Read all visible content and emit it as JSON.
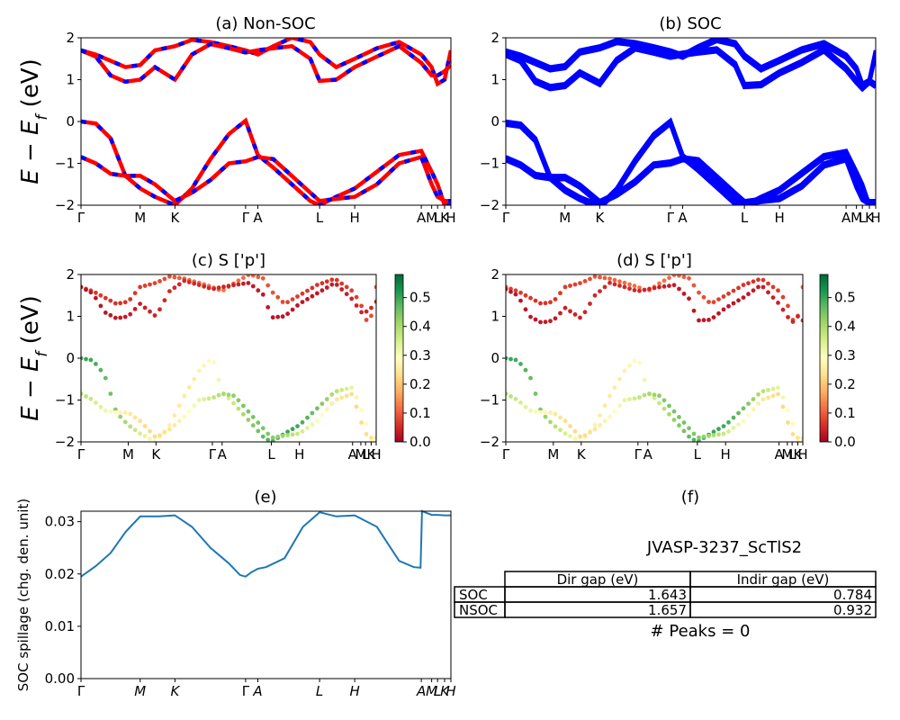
{
  "kpath": [
    "Γ",
    "M",
    "K",
    "Γ",
    "A",
    "L",
    "H",
    "A",
    "M",
    "L",
    "K",
    "H"
  ],
  "kpath_pos": [
    0,
    0.16,
    0.254,
    0.445,
    0.478,
    0.645,
    0.74,
    0.92,
    0.948,
    0.964,
    0.983,
    1.0
  ],
  "ylabel_band": "E − E",
  "ylabel_band_sub": "f",
  "ylabel_band_unit": " (eV)",
  "colors": {
    "red": "#ff0000",
    "blue": "#0000ff",
    "spill": "#1f77b4"
  },
  "chart_data": [
    {
      "type": "line",
      "id": "a",
      "title": "(a) Non-SOC",
      "ylim": [
        -2,
        2
      ],
      "yticks": [
        -2,
        -1,
        0,
        1,
        2
      ],
      "x": [
        0,
        0.04,
        0.08,
        0.12,
        0.16,
        0.2,
        0.254,
        0.3,
        0.35,
        0.4,
        0.445,
        0.478,
        0.52,
        0.57,
        0.62,
        0.645,
        0.69,
        0.74,
        0.8,
        0.86,
        0.92,
        0.948,
        0.964,
        0.983,
        1.0
      ],
      "series": [
        {
          "name": "",
          "values": [
            0.0,
            -0.05,
            -0.4,
            -1.3,
            -1.6,
            -1.8,
            -2.0,
            -1.6,
            -0.9,
            -0.3,
            0.02,
            -0.8,
            -1.1,
            -1.5,
            -1.9,
            -2.0,
            -1.8,
            -1.6,
            -1.2,
            -0.8,
            -0.7,
            -1.2,
            -1.5,
            -2.0,
            -2.0
          ]
        },
        {
          "name": "",
          "values": [
            -0.85,
            -1.0,
            -1.25,
            -1.3,
            -1.3,
            -1.5,
            -1.9,
            -1.7,
            -1.4,
            -1.0,
            -0.95,
            -0.85,
            -0.9,
            -1.3,
            -1.7,
            -1.9,
            -1.85,
            -1.8,
            -1.5,
            -1.0,
            -0.85,
            -1.5,
            -1.8,
            -1.9,
            -1.9
          ]
        },
        {
          "name": "",
          "values": [
            1.7,
            1.6,
            1.45,
            1.3,
            1.35,
            1.7,
            1.8,
            1.95,
            1.9,
            1.8,
            1.7,
            1.6,
            1.8,
            2.0,
            1.9,
            1.6,
            1.3,
            1.5,
            1.75,
            1.9,
            1.6,
            1.3,
            0.9,
            1.0,
            1.7
          ]
        },
        {
          "name": "",
          "values": [
            1.7,
            1.55,
            1.1,
            0.95,
            1.0,
            1.3,
            1.0,
            1.6,
            1.85,
            1.75,
            1.65,
            1.7,
            1.75,
            1.8,
            1.5,
            0.97,
            1.0,
            1.3,
            1.55,
            1.8,
            1.4,
            1.1,
            1.1,
            1.2,
            1.35
          ]
        }
      ]
    },
    {
      "type": "line",
      "id": "b",
      "title": "(b) SOC",
      "ylim": [
        -2,
        2
      ],
      "yticks": [
        -2,
        -1,
        0,
        1,
        2
      ],
      "x": [
        0,
        0.04,
        0.08,
        0.12,
        0.16,
        0.2,
        0.254,
        0.3,
        0.35,
        0.4,
        0.445,
        0.478,
        0.52,
        0.57,
        0.62,
        0.645,
        0.69,
        0.74,
        0.8,
        0.86,
        0.92,
        0.948,
        0.964,
        0.983,
        1.0
      ],
      "series": [
        {
          "name": "",
          "values": [
            0.0,
            -0.05,
            -0.4,
            -1.3,
            -1.6,
            -1.8,
            -2.0,
            -1.6,
            -0.9,
            -0.3,
            0.02,
            -0.8,
            -1.1,
            -1.5,
            -1.9,
            -2.0,
            -1.8,
            -1.6,
            -1.2,
            -0.8,
            -0.7,
            -1.2,
            -1.5,
            -2.0,
            -2.0
          ]
        },
        {
          "name": "",
          "values": [
            -0.85,
            -1.0,
            -1.25,
            -1.3,
            -1.3,
            -1.5,
            -1.9,
            -1.7,
            -1.4,
            -1.0,
            -0.95,
            -0.85,
            -0.9,
            -1.3,
            -1.7,
            -1.9,
            -1.85,
            -1.8,
            -1.5,
            -1.0,
            -0.85,
            -1.5,
            -1.8,
            -1.9,
            -1.9
          ]
        },
        {
          "name": "",
          "values": [
            1.7,
            1.6,
            1.45,
            1.3,
            1.35,
            1.7,
            1.8,
            1.95,
            1.9,
            1.8,
            1.7,
            1.6,
            1.8,
            2.0,
            1.9,
            1.6,
            1.3,
            1.5,
            1.75,
            1.9,
            1.6,
            1.3,
            0.9,
            1.0,
            1.7
          ]
        },
        {
          "name": "",
          "values": [
            1.65,
            1.5,
            1.0,
            0.85,
            0.9,
            1.2,
            0.95,
            1.5,
            1.8,
            1.7,
            1.6,
            1.65,
            1.7,
            1.75,
            1.4,
            0.9,
            0.92,
            1.2,
            1.45,
            1.75,
            1.3,
            1.0,
            0.85,
            1.0,
            0.9
          ]
        }
      ]
    },
    {
      "type": "scatter",
      "id": "c",
      "title": "(c)  S ['p']",
      "ylim": [
        -2,
        2
      ],
      "yticks": [
        -2,
        -1,
        0,
        1,
        2
      ],
      "colorbar": {
        "min": 0.0,
        "max": 0.58,
        "ticks": [
          "0.0",
          "0.1",
          "0.2",
          "0.3",
          "0.4",
          "0.5"
        ],
        "cmap": "RdYlGn"
      }
    },
    {
      "type": "scatter",
      "id": "d",
      "title": "(d) S ['p']",
      "ylim": [
        -2,
        2
      ],
      "yticks": [
        -2,
        -1,
        0,
        1,
        2
      ],
      "colorbar": {
        "min": 0.0,
        "max": 0.58,
        "ticks": [
          "0.0",
          "0.1",
          "0.2",
          "0.3",
          "0.4",
          "0.5"
        ],
        "cmap": "RdYlGn"
      }
    },
    {
      "type": "line",
      "id": "e",
      "title": "(e)",
      "ylabel": "SOC spillage (chg. den. unit)",
      "ylim": [
        0.0,
        0.032
      ],
      "yticks": [
        "0.00",
        "0.01",
        "0.02",
        "0.03"
      ],
      "x": [
        0,
        0.04,
        0.08,
        0.12,
        0.16,
        0.21,
        0.254,
        0.3,
        0.35,
        0.4,
        0.43,
        0.445,
        0.46,
        0.478,
        0.5,
        0.55,
        0.6,
        0.645,
        0.69,
        0.74,
        0.8,
        0.86,
        0.9,
        0.918,
        0.922,
        0.948,
        0.964,
        0.983,
        1.0
      ],
      "values": [
        0.0195,
        0.0215,
        0.024,
        0.028,
        0.031,
        0.031,
        0.0312,
        0.029,
        0.025,
        0.022,
        0.0198,
        0.0195,
        0.0203,
        0.021,
        0.0213,
        0.023,
        0.029,
        0.0318,
        0.031,
        0.0312,
        0.029,
        0.0225,
        0.0213,
        0.0212,
        0.032,
        0.0313,
        0.0313,
        0.0312,
        0.0312
      ]
    }
  ],
  "panel_f": {
    "title": "(f)",
    "subtitle": "JVASP-3237_ScTlS2",
    "headers": [
      "Dir gap (eV)",
      "Indir gap (eV)"
    ],
    "rows": [
      {
        "label": "SOC",
        "dir": "1.643",
        "indir": "0.784"
      },
      {
        "label": "NSOC",
        "dir": "1.657",
        "indir": "0.932"
      }
    ],
    "peaks": "# Peaks = 0"
  }
}
